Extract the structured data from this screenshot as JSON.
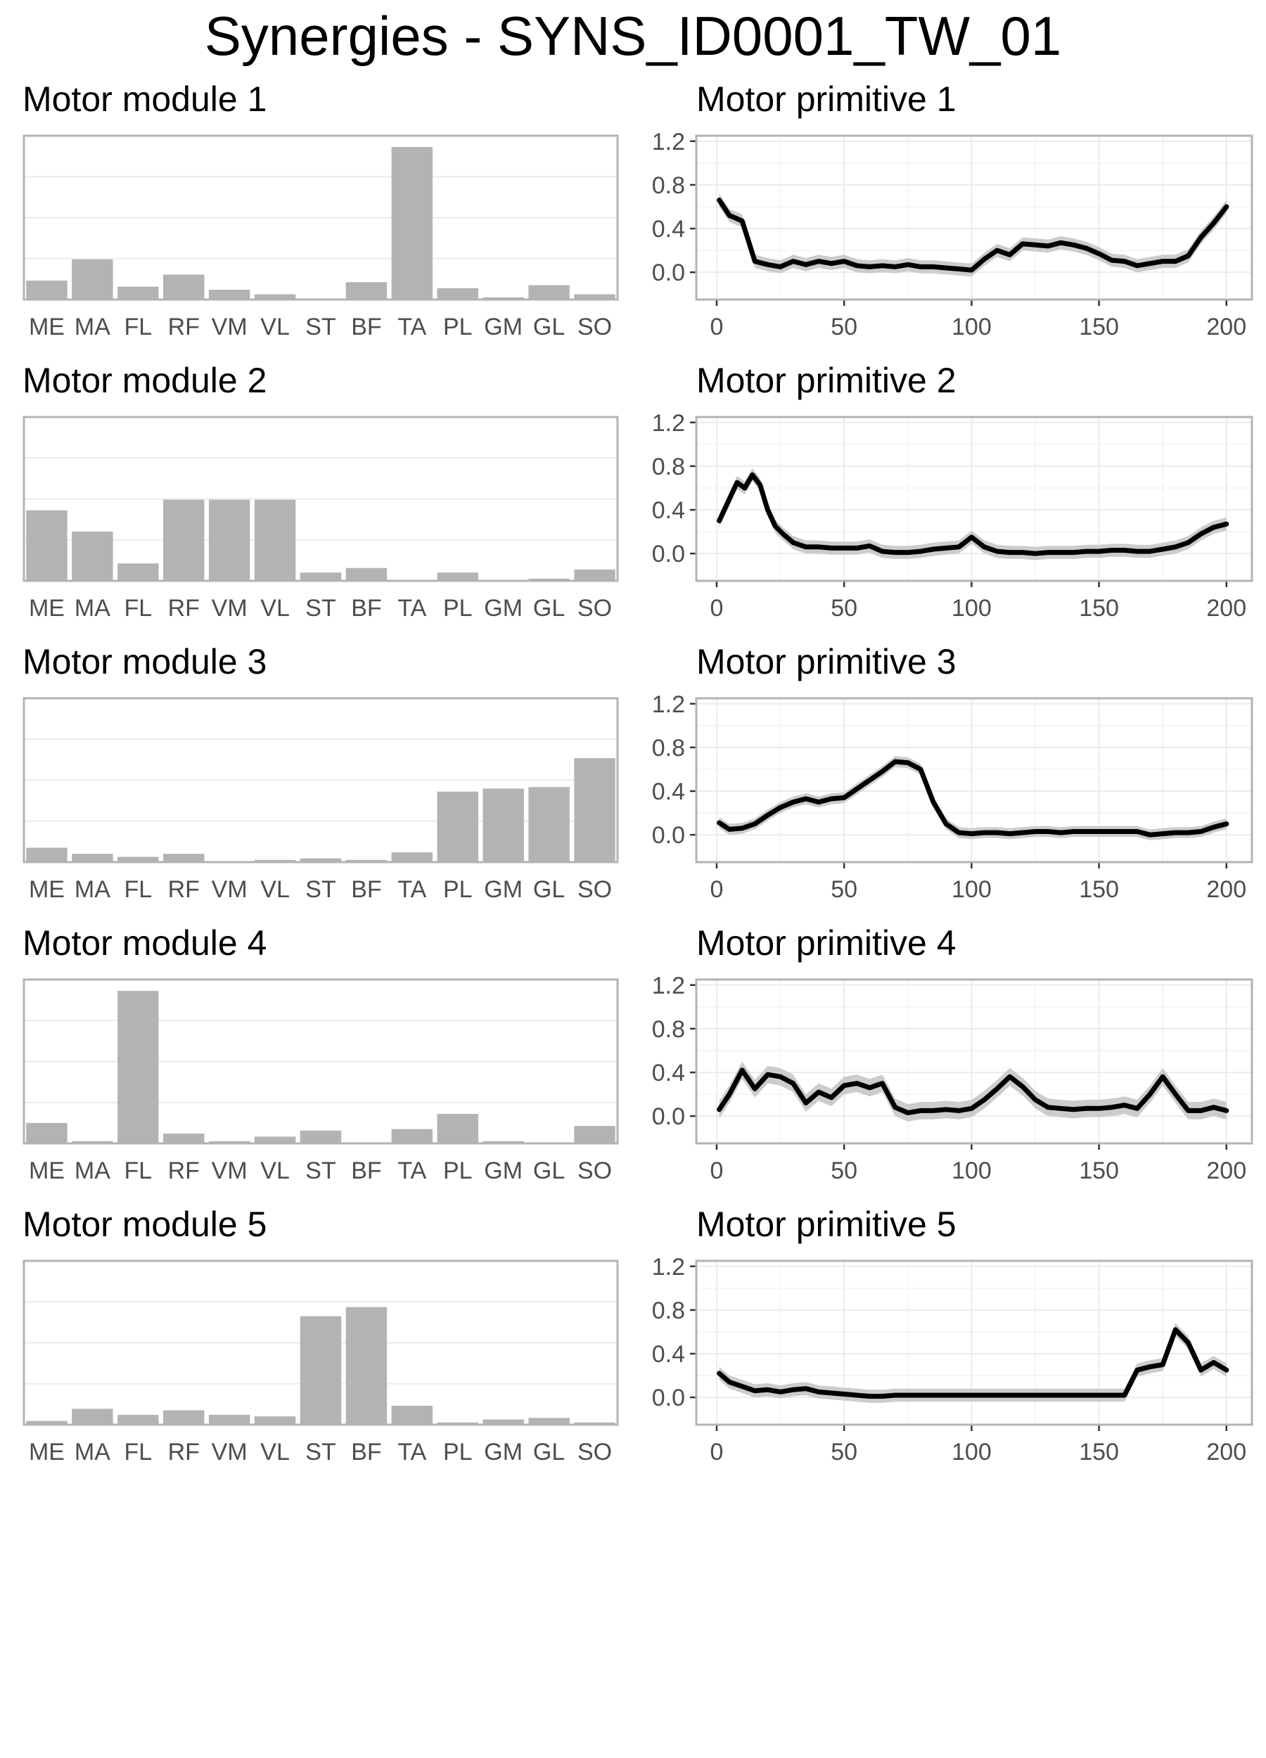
{
  "title": "Synergies - SYNS_ID0001_TW_01",
  "muscles": [
    "ME",
    "MA",
    "FL",
    "RF",
    "VM",
    "VL",
    "ST",
    "BF",
    "TA",
    "PL",
    "GM",
    "GL",
    "SO"
  ],
  "primitive_axis": {
    "x_ticks": [
      "0",
      "50",
      "100",
      "150",
      "200"
    ],
    "y_ticks": [
      "0.0",
      "0.4",
      "0.8",
      "1.2"
    ],
    "xlim": [
      -8,
      210
    ],
    "ylim": [
      -0.25,
      1.25
    ]
  },
  "module_axis": {
    "ylim": [
      0,
      1.07
    ]
  },
  "colors": {
    "bar": "#b3b3b3",
    "line": "#000000",
    "band": "#cccccc",
    "grid": "#ebebeb",
    "border": "#b3b3b3"
  },
  "chart_data": [
    {
      "type": "bar",
      "title": "Motor module 1",
      "categories": [
        "ME",
        "MA",
        "FL",
        "RF",
        "VM",
        "VL",
        "ST",
        "BF",
        "TA",
        "PL",
        "GM",
        "GL",
        "SO"
      ],
      "values": [
        0.12,
        0.26,
        0.08,
        0.16,
        0.06,
        0.03,
        0.0,
        0.11,
        1.0,
        0.07,
        0.01,
        0.09,
        0.03
      ]
    },
    {
      "type": "line",
      "title": "Motor primitive 1",
      "x": [
        1,
        5,
        10,
        15,
        20,
        25,
        30,
        35,
        40,
        45,
        50,
        55,
        60,
        65,
        70,
        75,
        80,
        85,
        90,
        95,
        100,
        105,
        110,
        115,
        120,
        125,
        130,
        135,
        140,
        145,
        150,
        155,
        160,
        165,
        170,
        175,
        180,
        185,
        190,
        195,
        200
      ],
      "y": [
        0.66,
        0.52,
        0.47,
        0.1,
        0.07,
        0.05,
        0.1,
        0.07,
        0.1,
        0.08,
        0.1,
        0.06,
        0.05,
        0.06,
        0.05,
        0.07,
        0.05,
        0.05,
        0.04,
        0.03,
        0.02,
        0.12,
        0.2,
        0.16,
        0.26,
        0.25,
        0.24,
        0.27,
        0.25,
        0.22,
        0.17,
        0.11,
        0.1,
        0.06,
        0.08,
        0.1,
        0.1,
        0.15,
        0.32,
        0.45,
        0.6
      ],
      "band": 0.06
    },
    {
      "type": "bar",
      "title": "Motor module 2",
      "categories": [
        "ME",
        "MA",
        "FL",
        "RF",
        "VM",
        "VL",
        "ST",
        "BF",
        "TA",
        "PL",
        "GM",
        "GL",
        "SO"
      ],
      "values": [
        0.46,
        0.32,
        0.11,
        0.53,
        0.53,
        0.53,
        0.05,
        0.08,
        0.0,
        0.05,
        0.0,
        0.01,
        0.07
      ]
    },
    {
      "type": "line",
      "title": "Motor primitive 2",
      "x": [
        1,
        5,
        8,
        11,
        14,
        17,
        20,
        23,
        26,
        30,
        35,
        40,
        45,
        50,
        55,
        60,
        65,
        70,
        75,
        80,
        85,
        90,
        95,
        100,
        105,
        110,
        115,
        120,
        125,
        130,
        135,
        140,
        145,
        150,
        155,
        160,
        165,
        170,
        175,
        180,
        185,
        190,
        195,
        200
      ],
      "y": [
        0.3,
        0.5,
        0.65,
        0.6,
        0.72,
        0.63,
        0.4,
        0.25,
        0.18,
        0.1,
        0.06,
        0.06,
        0.05,
        0.05,
        0.05,
        0.07,
        0.02,
        0.01,
        0.01,
        0.02,
        0.04,
        0.05,
        0.06,
        0.15,
        0.06,
        0.02,
        0.01,
        0.01,
        0.0,
        0.01,
        0.01,
        0.01,
        0.02,
        0.02,
        0.03,
        0.03,
        0.02,
        0.02,
        0.04,
        0.06,
        0.1,
        0.18,
        0.24,
        0.27
      ],
      "band": 0.06
    },
    {
      "type": "bar",
      "title": "Motor module 3",
      "categories": [
        "ME",
        "MA",
        "FL",
        "RF",
        "VM",
        "VL",
        "ST",
        "BF",
        "TA",
        "PL",
        "GM",
        "GL",
        "SO"
      ],
      "values": [
        0.09,
        0.05,
        0.03,
        0.05,
        0.0,
        0.01,
        0.02,
        0.01,
        0.06,
        0.46,
        0.48,
        0.49,
        0.68
      ]
    },
    {
      "type": "line",
      "title": "Motor primitive 3",
      "x": [
        1,
        5,
        10,
        15,
        20,
        25,
        30,
        35,
        40,
        45,
        50,
        55,
        60,
        65,
        70,
        75,
        80,
        85,
        90,
        95,
        100,
        105,
        110,
        115,
        120,
        125,
        130,
        135,
        140,
        145,
        150,
        155,
        160,
        165,
        170,
        175,
        180,
        185,
        190,
        195,
        200
      ],
      "y": [
        0.11,
        0.05,
        0.06,
        0.1,
        0.18,
        0.25,
        0.3,
        0.33,
        0.3,
        0.33,
        0.34,
        0.42,
        0.5,
        0.58,
        0.67,
        0.66,
        0.6,
        0.3,
        0.1,
        0.02,
        0.01,
        0.02,
        0.02,
        0.01,
        0.02,
        0.03,
        0.03,
        0.02,
        0.03,
        0.03,
        0.03,
        0.03,
        0.03,
        0.03,
        0.0,
        0.01,
        0.02,
        0.02,
        0.03,
        0.07,
        0.1
      ],
      "band": 0.05
    },
    {
      "type": "bar",
      "title": "Motor module 4",
      "categories": [
        "ME",
        "MA",
        "FL",
        "RF",
        "VM",
        "VL",
        "ST",
        "BF",
        "TA",
        "PL",
        "GM",
        "GL",
        "SO"
      ],
      "values": [
        0.13,
        0.01,
        1.0,
        0.06,
        0.01,
        0.04,
        0.08,
        0.0,
        0.09,
        0.19,
        0.01,
        0.0,
        0.11
      ]
    },
    {
      "type": "line",
      "title": "Motor primitive 4",
      "x": [
        1,
        5,
        10,
        15,
        20,
        25,
        30,
        35,
        40,
        45,
        50,
        55,
        60,
        65,
        70,
        75,
        80,
        85,
        90,
        95,
        100,
        105,
        110,
        115,
        120,
        125,
        130,
        135,
        140,
        145,
        150,
        155,
        160,
        165,
        170,
        175,
        180,
        185,
        190,
        195,
        200
      ],
      "y": [
        0.06,
        0.2,
        0.42,
        0.25,
        0.38,
        0.36,
        0.3,
        0.12,
        0.22,
        0.17,
        0.28,
        0.3,
        0.26,
        0.3,
        0.08,
        0.03,
        0.05,
        0.05,
        0.06,
        0.05,
        0.07,
        0.15,
        0.25,
        0.36,
        0.27,
        0.15,
        0.08,
        0.07,
        0.06,
        0.07,
        0.07,
        0.08,
        0.1,
        0.07,
        0.2,
        0.36,
        0.2,
        0.05,
        0.05,
        0.08,
        0.05
      ],
      "band": 0.08
    },
    {
      "type": "bar",
      "title": "Motor module 5",
      "categories": [
        "ME",
        "MA",
        "FL",
        "RF",
        "VM",
        "VL",
        "ST",
        "BF",
        "TA",
        "PL",
        "GM",
        "GL",
        "SO"
      ],
      "values": [
        0.02,
        0.1,
        0.06,
        0.09,
        0.06,
        0.05,
        0.71,
        0.77,
        0.12,
        0.01,
        0.03,
        0.04,
        0.01
      ]
    },
    {
      "type": "line",
      "title": "Motor primitive 5",
      "x": [
        1,
        5,
        10,
        15,
        20,
        25,
        30,
        35,
        40,
        45,
        50,
        55,
        60,
        65,
        70,
        75,
        80,
        85,
        90,
        95,
        100,
        105,
        110,
        115,
        120,
        125,
        130,
        135,
        140,
        145,
        150,
        155,
        160,
        165,
        170,
        175,
        180,
        185,
        190,
        195,
        200
      ],
      "y": [
        0.22,
        0.14,
        0.1,
        0.06,
        0.07,
        0.05,
        0.07,
        0.08,
        0.05,
        0.04,
        0.03,
        0.02,
        0.01,
        0.01,
        0.02,
        0.02,
        0.02,
        0.02,
        0.02,
        0.02,
        0.02,
        0.02,
        0.02,
        0.02,
        0.02,
        0.02,
        0.02,
        0.02,
        0.02,
        0.02,
        0.02,
        0.02,
        0.02,
        0.25,
        0.28,
        0.3,
        0.62,
        0.5,
        0.25,
        0.32,
        0.25
      ],
      "band": 0.06
    }
  ]
}
